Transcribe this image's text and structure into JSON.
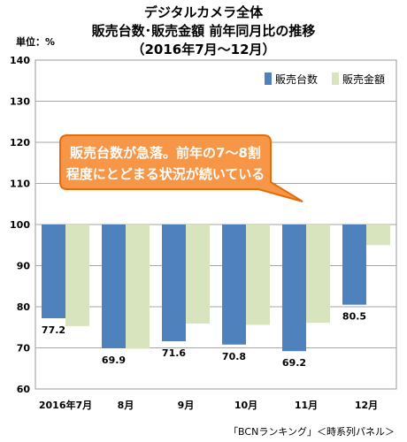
{
  "chart_data": {
    "type": "bar",
    "title": [
      "デジタルカメラ全体",
      "販売台数･販売金額 前年同月比の推移",
      "（2016年7月～12月）"
    ],
    "unit_label": "単位：%",
    "categories": [
      "2016年7月",
      "8月",
      "9月",
      "10月",
      "11月",
      "12月"
    ],
    "baseline": 100,
    "ylim": [
      60,
      140
    ],
    "yticks": [
      60,
      70,
      80,
      90,
      100,
      110,
      120,
      130,
      140
    ],
    "grid": true,
    "legend_position": "top-right",
    "series": [
      {
        "name": "販売台数",
        "values": [
          77.2,
          69.9,
          71.6,
          70.8,
          69.2,
          80.5
        ],
        "color": "#4f81bd"
      },
      {
        "name": "販売金額",
        "values": [
          75.3,
          69.8,
          75.9,
          75.6,
          76.1,
          95.0
        ],
        "color": "#d7e4bd"
      }
    ],
    "data_labels": [
      "77.2",
      "69.9",
      "71.6",
      "70.8",
      "69.2",
      "80.5"
    ],
    "annotation": {
      "lines": [
        "販売台数が急落。前年の7～8割",
        "程度にとどまる状況が続いている"
      ],
      "fill": "#f79646",
      "border": "#e46c0a"
    },
    "source": "「BCNランキング」＜時系列パネル＞"
  }
}
